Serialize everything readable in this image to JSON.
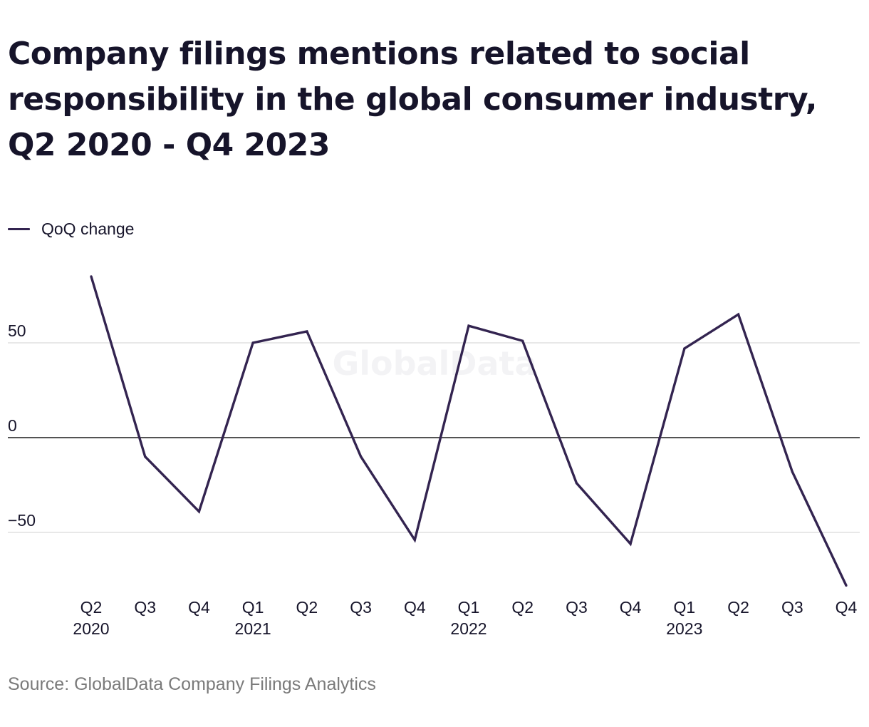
{
  "title": "Company filings mentions related to social responsibility in the global consumer industry, Q2 2020 - Q4 2023",
  "source": "Source: GlobalData Company Filings Analytics",
  "watermark": "GlobalData",
  "colors": {
    "line": "#332450",
    "grid": "#d9d9d9",
    "zero_line": "#1a1a1a",
    "text": "#16142a",
    "muted": "#7a7a7a"
  },
  "chart_data": {
    "type": "line",
    "categories": [
      {
        "q": "Q2",
        "year": "2020"
      },
      {
        "q": "Q3",
        "year": ""
      },
      {
        "q": "Q4",
        "year": ""
      },
      {
        "q": "Q1",
        "year": "2021"
      },
      {
        "q": "Q2",
        "year": ""
      },
      {
        "q": "Q3",
        "year": ""
      },
      {
        "q": "Q4",
        "year": ""
      },
      {
        "q": "Q1",
        "year": "2022"
      },
      {
        "q": "Q2",
        "year": ""
      },
      {
        "q": "Q3",
        "year": ""
      },
      {
        "q": "Q4",
        "year": ""
      },
      {
        "q": "Q1",
        "year": "2023"
      },
      {
        "q": "Q2",
        "year": ""
      },
      {
        "q": "Q3",
        "year": ""
      },
      {
        "q": "Q4",
        "year": ""
      }
    ],
    "series": [
      {
        "name": "QoQ change",
        "values": [
          85,
          -10,
          -39,
          50,
          56,
          -10,
          -54,
          59,
          51,
          -24,
          -56,
          47,
          65,
          -18,
          -78
        ]
      }
    ],
    "y_ticks": [
      {
        "value": 50,
        "label": "50"
      },
      {
        "value": 0,
        "label": "0"
      },
      {
        "value": -50,
        "label": "−50"
      }
    ],
    "ylim": [
      -78,
      85
    ],
    "xlabel": "",
    "ylabel": "",
    "grid": true,
    "legend": "top-left"
  }
}
